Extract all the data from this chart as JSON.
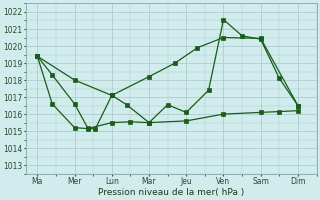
{
  "xlabel": "Pression niveau de la mer( hPa )",
  "background_color": "#d0ecec",
  "grid_color": "#b0cccc",
  "line_color": "#1a5c1a",
  "ylim": [
    1012.5,
    1022.5
  ],
  "yticks": [
    1013,
    1014,
    1015,
    1016,
    1017,
    1018,
    1019,
    1020,
    1021,
    1022
  ],
  "x_labels": [
    "Ma",
    "Mer",
    "Lun",
    "Mar",
    "Jeu",
    "Ven",
    "Sam",
    "Dim"
  ],
  "day_x": [
    0,
    1,
    2,
    3,
    4,
    5,
    6,
    7
  ],
  "line1_x": [
    0,
    0.4,
    1.0,
    1.35,
    1.55,
    2.0,
    2.4,
    3.0,
    3.5,
    4.0,
    4.6,
    5.0,
    5.5,
    6.0,
    6.5,
    7.0
  ],
  "line1_y": [
    1019.4,
    1018.3,
    1016.6,
    1015.2,
    1015.1,
    1017.1,
    1016.55,
    1015.5,
    1016.55,
    1016.1,
    1017.4,
    1021.55,
    1020.6,
    1020.4,
    1018.1,
    1016.5
  ],
  "line2_x": [
    0,
    0.4,
    1.0,
    1.35,
    2.0,
    2.5,
    3.0,
    4.0,
    5.0,
    6.0,
    6.5,
    7.0
  ],
  "line2_y": [
    1019.4,
    1016.6,
    1015.2,
    1015.15,
    1015.5,
    1015.55,
    1015.5,
    1015.6,
    1016.0,
    1016.1,
    1016.15,
    1016.2
  ],
  "line3_x": [
    0,
    1.0,
    2.0,
    3.0,
    3.7,
    4.3,
    5.0,
    6.0,
    7.0
  ],
  "line3_y": [
    1019.4,
    1018.0,
    1017.1,
    1018.2,
    1019.0,
    1019.9,
    1020.5,
    1020.45,
    1016.5
  ]
}
